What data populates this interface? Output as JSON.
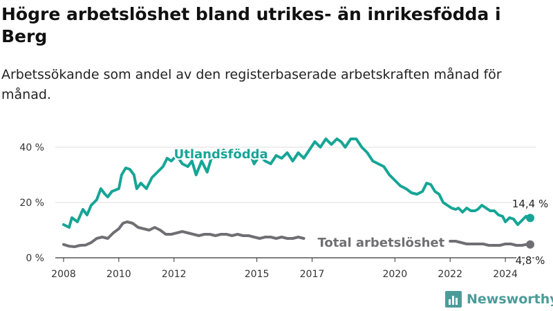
{
  "page": {
    "title": "Högre arbetslöshet bland utrikes- än inrikesfödda i Berg",
    "subtitle": "Arbetssökande som andel av den registerbaserade arbetskraften månad för månad.",
    "brand": "Newsworthy"
  },
  "colors": {
    "utlandsfodda": "#16a596",
    "total": "#6f6f73",
    "grid": "#dddddd",
    "axis": "#333333",
    "brand": "#4b9c99"
  },
  "chart_data": {
    "type": "line",
    "ylim": [
      0,
      50
    ],
    "xlim": [
      2007.7,
      2025.1
    ],
    "x_ticks": [
      2008,
      2010,
      2012,
      2015,
      2017,
      2020,
      2022,
      2024
    ],
    "x_tick_labels": [
      "2008",
      "2010",
      "2012",
      "2015",
      "2017",
      "2020",
      "2022",
      "2024"
    ],
    "y_ticks": [
      0,
      20,
      40
    ],
    "y_tick_labels": [
      "0 %",
      "20 %",
      "40 %"
    ],
    "grid": true,
    "series": [
      {
        "name": "Utlandsfödda",
        "end_label": "14,4 %",
        "points": [
          [
            2008.0,
            12
          ],
          [
            2008.2,
            11
          ],
          [
            2008.3,
            14.5
          ],
          [
            2008.5,
            13
          ],
          [
            2008.7,
            17.5
          ],
          [
            2008.85,
            15.5
          ],
          [
            2009.0,
            19
          ],
          [
            2009.2,
            21
          ],
          [
            2009.35,
            25
          ],
          [
            2009.5,
            23
          ],
          [
            2009.6,
            22
          ],
          [
            2009.75,
            24
          ],
          [
            2010.0,
            25
          ],
          [
            2010.1,
            30
          ],
          [
            2010.25,
            32.5
          ],
          [
            2010.4,
            32
          ],
          [
            2010.55,
            30
          ],
          [
            2010.65,
            25
          ],
          [
            2010.8,
            27
          ],
          [
            2011.0,
            25
          ],
          [
            2011.2,
            29
          ],
          [
            2011.4,
            31
          ],
          [
            2011.6,
            33
          ],
          [
            2011.75,
            36
          ],
          [
            2011.9,
            35
          ],
          [
            2012.1,
            37
          ],
          [
            2012.3,
            34
          ],
          [
            2012.5,
            33
          ],
          [
            2012.65,
            35
          ],
          [
            2012.8,
            30
          ],
          [
            2013.0,
            35
          ],
          [
            2013.2,
            31
          ],
          [
            2013.35,
            36
          ],
          [
            2013.6,
            37
          ],
          [
            2013.8,
            39
          ],
          [
            2014.0,
            36
          ],
          [
            2014.2,
            38
          ],
          [
            2014.5,
            37
          ],
          [
            2014.7,
            39
          ],
          [
            2014.9,
            34
          ],
          [
            2015.1,
            37
          ],
          [
            2015.3,
            35
          ],
          [
            2015.5,
            34
          ],
          [
            2015.7,
            37
          ],
          [
            2015.9,
            36
          ],
          [
            2016.1,
            38
          ],
          [
            2016.3,
            35
          ],
          [
            2016.5,
            38
          ],
          [
            2016.7,
            36
          ],
          [
            2016.9,
            39
          ],
          [
            2017.1,
            42
          ],
          [
            2017.3,
            40
          ],
          [
            2017.5,
            43
          ],
          [
            2017.7,
            41
          ],
          [
            2017.9,
            43
          ],
          [
            2018.05,
            42
          ],
          [
            2018.2,
            40
          ],
          [
            2018.4,
            43
          ],
          [
            2018.6,
            43
          ],
          [
            2018.8,
            40
          ],
          [
            2019.0,
            38
          ],
          [
            2019.2,
            35
          ],
          [
            2019.4,
            34
          ],
          [
            2019.6,
            33
          ],
          [
            2019.8,
            30
          ],
          [
            2020.0,
            28
          ],
          [
            2020.2,
            26
          ],
          [
            2020.4,
            25
          ],
          [
            2020.6,
            23.5
          ],
          [
            2020.8,
            23
          ],
          [
            2021.0,
            24
          ],
          [
            2021.15,
            27
          ],
          [
            2021.3,
            26.5
          ],
          [
            2021.45,
            24
          ],
          [
            2021.6,
            23
          ],
          [
            2021.75,
            20
          ],
          [
            2021.9,
            19
          ],
          [
            2022.05,
            18
          ],
          [
            2022.2,
            17.5
          ],
          [
            2022.3,
            18
          ],
          [
            2022.45,
            16.5
          ],
          [
            2022.6,
            18
          ],
          [
            2022.75,
            17
          ],
          [
            2022.9,
            17
          ],
          [
            2023.0,
            17.5
          ],
          [
            2023.15,
            19
          ],
          [
            2023.3,
            18
          ],
          [
            2023.45,
            17
          ],
          [
            2023.6,
            17
          ],
          [
            2023.75,
            15.5
          ],
          [
            2023.9,
            15
          ],
          [
            2024.0,
            13
          ],
          [
            2024.15,
            14.5
          ],
          [
            2024.3,
            14
          ],
          [
            2024.45,
            12
          ],
          [
            2024.6,
            13.5
          ],
          [
            2024.75,
            15
          ],
          [
            2024.9,
            14.4
          ]
        ]
      },
      {
        "name": "Total arbetslöshet",
        "end_label": "4,8 %",
        "points": [
          [
            2008.0,
            4.8
          ],
          [
            2008.2,
            4.2
          ],
          [
            2008.4,
            4
          ],
          [
            2008.6,
            4.5
          ],
          [
            2008.8,
            4.6
          ],
          [
            2009.0,
            5.5
          ],
          [
            2009.2,
            7
          ],
          [
            2009.4,
            7.5
          ],
          [
            2009.6,
            7
          ],
          [
            2009.8,
            9
          ],
          [
            2010.0,
            10.5
          ],
          [
            2010.15,
            12.5
          ],
          [
            2010.3,
            13
          ],
          [
            2010.5,
            12.5
          ],
          [
            2010.7,
            11
          ],
          [
            2010.9,
            10.5
          ],
          [
            2011.1,
            10
          ],
          [
            2011.3,
            11
          ],
          [
            2011.5,
            10
          ],
          [
            2011.7,
            8.5
          ],
          [
            2011.9,
            8.5
          ],
          [
            2012.1,
            9
          ],
          [
            2012.3,
            9.5
          ],
          [
            2012.5,
            9
          ],
          [
            2012.7,
            8.5
          ],
          [
            2012.9,
            8
          ],
          [
            2013.1,
            8.5
          ],
          [
            2013.3,
            8.5
          ],
          [
            2013.5,
            8
          ],
          [
            2013.7,
            8.5
          ],
          [
            2013.9,
            8.5
          ],
          [
            2014.1,
            8
          ],
          [
            2014.3,
            8.5
          ],
          [
            2014.5,
            8
          ],
          [
            2014.7,
            8
          ],
          [
            2014.9,
            7.5
          ],
          [
            2015.1,
            7
          ],
          [
            2015.3,
            7.5
          ],
          [
            2015.5,
            7.5
          ],
          [
            2015.7,
            7
          ],
          [
            2015.9,
            7.5
          ],
          [
            2016.1,
            7
          ],
          [
            2016.3,
            7
          ],
          [
            2016.5,
            7.5
          ],
          [
            2016.7,
            7
          ]
        ]
      },
      {
        "points": [
          [
            2022.0,
            6
          ],
          [
            2022.2,
            6
          ],
          [
            2022.4,
            5.5
          ],
          [
            2022.6,
            5
          ],
          [
            2022.8,
            5
          ],
          [
            2023.0,
            5
          ],
          [
            2023.2,
            5
          ],
          [
            2023.4,
            4.5
          ],
          [
            2023.6,
            4.5
          ],
          [
            2023.8,
            4.5
          ],
          [
            2024.0,
            5
          ],
          [
            2024.2,
            5
          ],
          [
            2024.4,
            4.5
          ],
          [
            2024.6,
            4.5
          ],
          [
            2024.75,
            4.8
          ],
          [
            2024.9,
            4.8
          ]
        ]
      }
    ]
  }
}
